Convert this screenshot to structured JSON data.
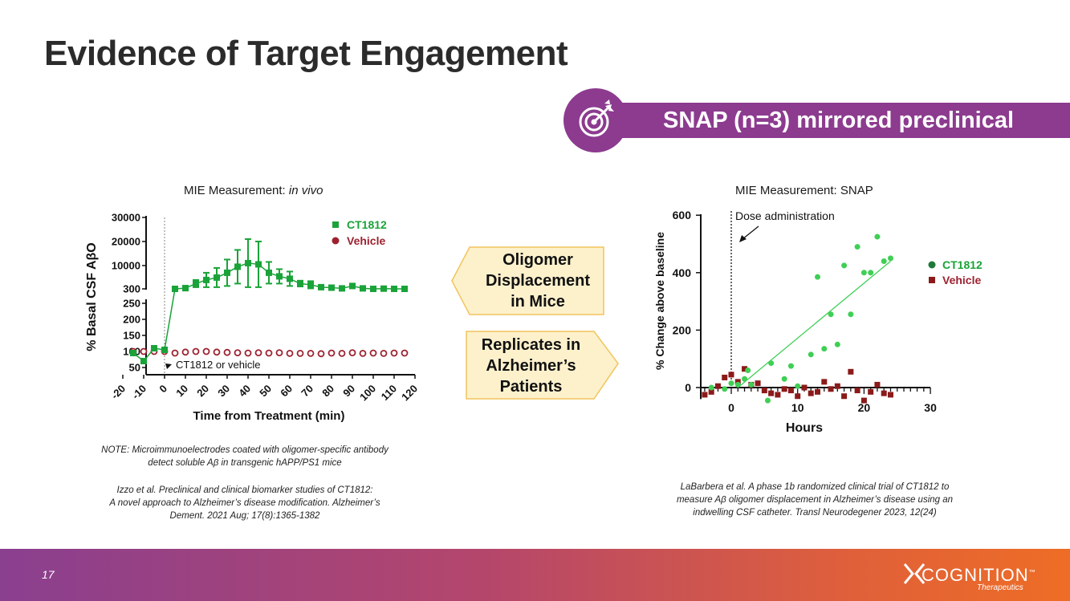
{
  "title": "Evidence of Target Engagement",
  "banner": {
    "text": "SNAP (n=3) mirrored preclinical",
    "icon": "target-icon"
  },
  "colors": {
    "ct1812": "#1aa339",
    "vehicle": "#9c2230",
    "snapGreen": "#3fcf55",
    "snapRed": "#8b1a1a",
    "purple": "#8c3b8f",
    "calloutFill": "#fdf1cc",
    "calloutStroke": "#f2c45c"
  },
  "left_chart_title": {
    "prefix": "MIE Measurement: ",
    "italic": "in vivo"
  },
  "right_chart_title": "MIE Measurement: SNAP",
  "callouts": {
    "left": [
      "Oligomer",
      "Displacement",
      "in Mice"
    ],
    "right": [
      "Replicates in",
      "Alzheimer’s",
      "Patients"
    ]
  },
  "notes": {
    "note1": [
      "NOTE: Microimmunoelectrodes coated with oligomer-specific antibody",
      "detect soluble Aβ in transgenic hAPP/PS1 mice"
    ],
    "ref1": [
      "Izzo et al. Preclinical and clinical biomarker studies of CT1812:",
      "A novel approach to Alzheimer’s disease modification. Alzheimer’s",
      "Dement. 2021 Aug; 17(8):1365-1382"
    ],
    "ref2": [
      "LaBarbera  et al. A phase 1b randomized clinical trial of CT1812 to",
      "measure Aβ oligomer displacement in Alzheimer’s disease using an",
      "indwelling CSF catheter.  Transl Neurodegener 2023, 12(24)"
    ]
  },
  "footer": {
    "page_number": "17",
    "logo_text": "COGNITION",
    "logo_tm": "™",
    "logo_sub": "Therapeutics"
  },
  "chart_data": [
    {
      "type": "scatter",
      "title": "MIE Measurement: in vivo",
      "xlabel": "Time from Treatment (min)",
      "ylabel": "% Basal CSF AβO",
      "annotation": "CT1812 or vehicle",
      "x_ticks": [
        "-20",
        "-10",
        "0",
        "10",
        "20",
        "30",
        "40",
        "50",
        "60",
        "70",
        "80",
        "90",
        "100",
        "110",
        "120"
      ],
      "y_ticks_lower": [
        "50",
        "100",
        "150",
        "200",
        "250"
      ],
      "y_ticks_upper": [
        "300",
        "10000",
        "20000",
        "30000"
      ],
      "legend": [
        "CT1812",
        "Vehicle"
      ],
      "series": [
        {
          "name": "CT1812",
          "x": [
            -15,
            -10,
            -5,
            0,
            5,
            10,
            15,
            20,
            25,
            30,
            35,
            40,
            45,
            50,
            55,
            60,
            65,
            70,
            75,
            80,
            85,
            90,
            95,
            100,
            105,
            110,
            115
          ],
          "y": [
            95,
            70,
            110,
            105,
            300,
            600,
            2500,
            4000,
            5000,
            7000,
            9500,
            11000,
            10500,
            7000,
            5500,
            4500,
            2500,
            2000,
            1000,
            800,
            500,
            1500,
            500,
            300,
            400,
            300,
            300
          ],
          "err": [
            0,
            0,
            0,
            0,
            0,
            1000,
            1500,
            3000,
            4000,
            5500,
            7000,
            10000,
            9500,
            4500,
            3000,
            3000,
            1200,
            1500,
            800,
            0,
            0,
            0,
            0,
            0,
            0,
            0,
            0
          ]
        },
        {
          "name": "Vehicle",
          "x": [
            -15,
            -10,
            -5,
            0,
            5,
            10,
            15,
            20,
            25,
            30,
            35,
            40,
            45,
            50,
            55,
            60,
            65,
            70,
            75,
            80,
            85,
            90,
            95,
            100,
            105,
            110,
            115
          ],
          "y": [
            100,
            100,
            100,
            100,
            95,
            98,
            100,
            100,
            98,
            97,
            96,
            95,
            96,
            95,
            96,
            94,
            94,
            94,
            93,
            95,
            94,
            96,
            94,
            95,
            94,
            95,
            95
          ]
        }
      ]
    },
    {
      "type": "scatter",
      "title": "MIE Measurement: SNAP",
      "xlabel": "Hours",
      "ylabel": "% Change above baseline",
      "annotation": "Dose administration",
      "xlim": [
        -4,
        30
      ],
      "ylim": [
        -50,
        600
      ],
      "x_ticks": [
        "0",
        "10",
        "20",
        "30"
      ],
      "y_ticks": [
        "0",
        "200",
        "400",
        "600"
      ],
      "legend": [
        "CT1812",
        "Vehicle"
      ],
      "series": [
        {
          "name": "CT1812",
          "x": [
            -3,
            -1,
            0,
            1,
            2,
            2.5,
            3,
            5.5,
            6,
            8,
            9,
            10,
            12,
            13,
            14,
            15,
            16,
            17,
            18,
            19,
            20,
            21,
            22,
            23,
            24
          ],
          "y": [
            0,
            -5,
            15,
            10,
            30,
            60,
            10,
            -45,
            85,
            30,
            75,
            5,
            115,
            385,
            135,
            255,
            150,
            425,
            255,
            490,
            400,
            400,
            525,
            440,
            450
          ],
          "trendline": {
            "x": [
              1,
              24
            ],
            "y": [
              0,
              440
            ]
          }
        },
        {
          "name": "Vehicle",
          "x": [
            -4,
            -3,
            -2,
            -1,
            0,
            1,
            2,
            3,
            4,
            5,
            6,
            7,
            8,
            9,
            10,
            11,
            12,
            13,
            14,
            15,
            16,
            17,
            18,
            19,
            20,
            21,
            22,
            23,
            24
          ],
          "y": [
            -25,
            -15,
            5,
            35,
            45,
            20,
            65,
            10,
            15,
            -10,
            -20,
            -25,
            -5,
            -10,
            -30,
            0,
            -20,
            -15,
            20,
            -5,
            5,
            -30,
            55,
            -10,
            -45,
            -15,
            10,
            -20,
            -25
          ]
        }
      ]
    }
  ]
}
